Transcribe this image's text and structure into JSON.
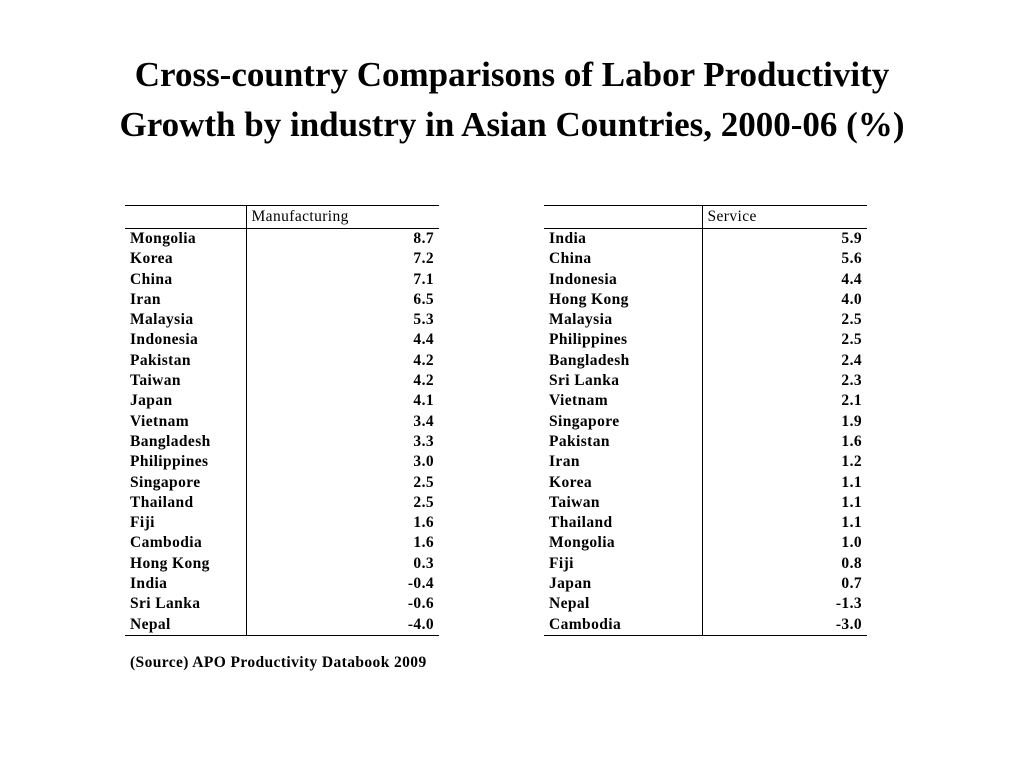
{
  "title_lines": [
    "Cross-country Comparisons of Labor Productivity",
    "Growth by industry in Asian Countries, 2000-06 (%)"
  ],
  "manufacturing": {
    "header": "Manufacturing",
    "rows": [
      {
        "country": "Mongolia",
        "value": "8.7"
      },
      {
        "country": "Korea",
        "value": "7.2"
      },
      {
        "country": "China",
        "value": "7.1"
      },
      {
        "country": "Iran",
        "value": "6.5"
      },
      {
        "country": "Malaysia",
        "value": "5.3"
      },
      {
        "country": "Indonesia",
        "value": "4.4"
      },
      {
        "country": "Pakistan",
        "value": "4.2"
      },
      {
        "country": "Taiwan",
        "value": "4.2"
      },
      {
        "country": "Japan",
        "value": "4.1"
      },
      {
        "country": "Vietnam",
        "value": "3.4"
      },
      {
        "country": "Bangladesh",
        "value": "3.3"
      },
      {
        "country": "Philippines",
        "value": "3.0"
      },
      {
        "country": "Singapore",
        "value": "2.5"
      },
      {
        "country": "Thailand",
        "value": "2.5"
      },
      {
        "country": "Fiji",
        "value": "1.6"
      },
      {
        "country": "Cambodia",
        "value": "1.6"
      },
      {
        "country": "Hong Kong",
        "value": "0.3"
      },
      {
        "country": "India",
        "value": "-0.4"
      },
      {
        "country": "Sri Lanka",
        "value": "-0.6"
      },
      {
        "country": "Nepal",
        "value": "-4.0"
      }
    ]
  },
  "service": {
    "header": "Service",
    "rows": [
      {
        "country": "India",
        "value": "5.9"
      },
      {
        "country": "China",
        "value": "5.6"
      },
      {
        "country": "Indonesia",
        "value": "4.4"
      },
      {
        "country": "Hong Kong",
        "value": "4.0"
      },
      {
        "country": "Malaysia",
        "value": "2.5"
      },
      {
        "country": "Philippines",
        "value": "2.5"
      },
      {
        "country": "Bangladesh",
        "value": "2.4"
      },
      {
        "country": "Sri Lanka",
        "value": "2.3"
      },
      {
        "country": "Vietnam",
        "value": "2.1"
      },
      {
        "country": "Singapore",
        "value": "1.9"
      },
      {
        "country": "Pakistan",
        "value": "1.6"
      },
      {
        "country": "Iran",
        "value": "1.2"
      },
      {
        "country": "Korea",
        "value": "1.1"
      },
      {
        "country": "Taiwan",
        "value": "1.1"
      },
      {
        "country": "Thailand",
        "value": "1.1"
      },
      {
        "country": "Mongolia",
        "value": "1.0"
      },
      {
        "country": "Fiji",
        "value": "0.8"
      },
      {
        "country": "Japan",
        "value": "0.7"
      },
      {
        "country": "Nepal",
        "value": "-1.3"
      },
      {
        "country": "Cambodia",
        "value": "-3.0"
      }
    ]
  },
  "source": "(Source) APO Productivity Databook 2009"
}
